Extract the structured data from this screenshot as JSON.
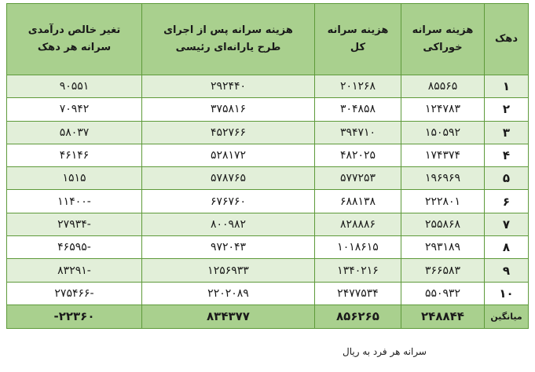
{
  "header": {
    "decile": "دهک",
    "food": [
      "هزینه سرانه",
      "خوراکی"
    ],
    "total": [
      "هزینه سرانه",
      "کل"
    ],
    "after": [
      "هزینه سرانه پس از اجرای",
      "طرح یارانه‌ای رئیسی"
    ],
    "net": [
      "تغیر خالص درآمدی",
      "سرانه هر دهک"
    ]
  },
  "rows": [
    {
      "decile": "۱",
      "food": "۸۵۵۶۵",
      "total": "۲۰۱۲۶۸",
      "after": "۲۹۲۴۴۰",
      "net": "۹۰۵۵۱"
    },
    {
      "decile": "۲",
      "food": "۱۲۴۷۸۳",
      "total": "۳۰۴۸۵۸",
      "after": "۳۷۵۸۱۶",
      "net": "۷۰۹۴۲"
    },
    {
      "decile": "۳",
      "food": "۱۵۰۵۹۲",
      "total": "۳۹۴۷۱۰",
      "after": "۴۵۲۷۶۶",
      "net": "۵۸۰۳۷"
    },
    {
      "decile": "۴",
      "food": "۱۷۴۳۷۴",
      "total": "۴۸۲۰۲۵",
      "after": "۵۲۸۱۷۲",
      "net": "۴۶۱۴۶"
    },
    {
      "decile": "۵",
      "food": "۱۹۶۹۶۹",
      "total": "۵۷۷۲۵۳",
      "after": "۵۷۸۷۶۵",
      "net": "۱۵۱۵"
    },
    {
      "decile": "۶",
      "food": "۲۲۲۸۰۱",
      "total": "۶۸۸۱۳۸",
      "after": "۶۷۶۷۶۰",
      "net": "-۱۱۴۰۰"
    },
    {
      "decile": "۷",
      "food": "۲۵۵۸۶۸",
      "total": "۸۲۸۸۸۶",
      "after": "۸۰۰۹۸۲",
      "net": "-۲۷۹۳۴"
    },
    {
      "decile": "۸",
      "food": "۲۹۳۱۸۹",
      "total": "۱۰۱۸۶۱۵",
      "after": "۹۷۲۰۴۳",
      "net": "-۴۶۵۹۵"
    },
    {
      "decile": "۹",
      "food": "۳۶۶۵۸۳",
      "total": "۱۳۴۰۲۱۶",
      "after": "۱۲۵۶۹۳۳",
      "net": "-۸۳۲۹۱"
    },
    {
      "decile": "۱۰",
      "food": "۵۵۰۹۳۲",
      "total": "۲۴۷۷۵۳۴",
      "after": "۲۲۰۲۰۸۹",
      "net": "-۲۷۵۴۶۶"
    }
  ],
  "average": {
    "decile": "میانگین",
    "food": "۲۴۸۸۴۴",
    "total": "۸۵۶۲۶۵",
    "after": "۸۳۴۳۷۷",
    "net": "۲۲۳۶۰-"
  },
  "caption": "سرانه هر فرد به ریال",
  "colors": {
    "header_bg": "#a9d08e",
    "band_bg": "#e2efd9",
    "border": "#5e9a3a"
  }
}
